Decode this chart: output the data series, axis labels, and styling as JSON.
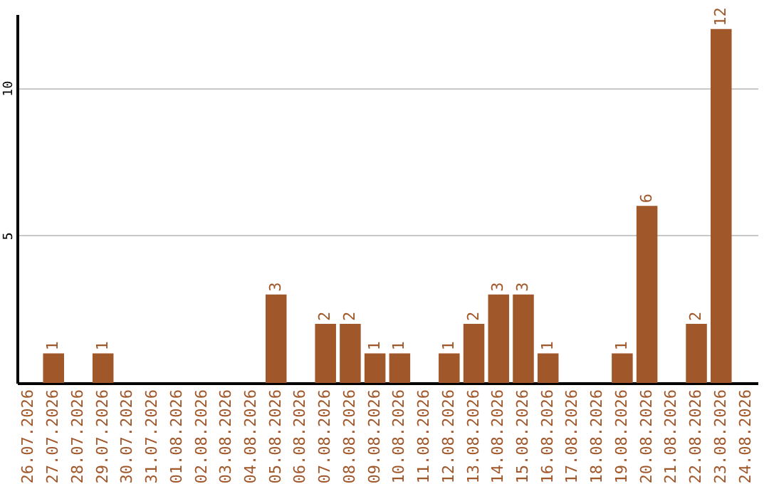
{
  "chart_data": {
    "type": "bar",
    "categories": [
      "26.07.2026",
      "27.07.2026",
      "28.07.2026",
      "29.07.2026",
      "30.07.2026",
      "31.07.2026",
      "01.08.2026",
      "02.08.2026",
      "03.08.2026",
      "04.08.2026",
      "05.08.2026",
      "06.08.2026",
      "07.08.2026",
      "08.08.2026",
      "09.08.2026",
      "10.08.2026",
      "11.08.2026",
      "12.08.2026",
      "13.08.2026",
      "14.08.2026",
      "15.08.2026",
      "16.08.2026",
      "17.08.2026",
      "18.08.2026",
      "19.08.2026",
      "20.08.2026",
      "21.08.2026",
      "22.08.2026",
      "23.08.2026",
      "24.08.2026"
    ],
    "values": [
      null,
      1,
      null,
      1,
      null,
      null,
      null,
      null,
      null,
      null,
      3,
      null,
      2,
      2,
      1,
      1,
      null,
      1,
      2,
      3,
      3,
      1,
      null,
      null,
      1,
      6,
      null,
      2,
      12,
      null
    ],
    "color": "#a0572a",
    "ylim": [
      0,
      12.5
    ],
    "yticks": [
      5,
      10
    ],
    "grid": "y",
    "data_labels": true
  }
}
